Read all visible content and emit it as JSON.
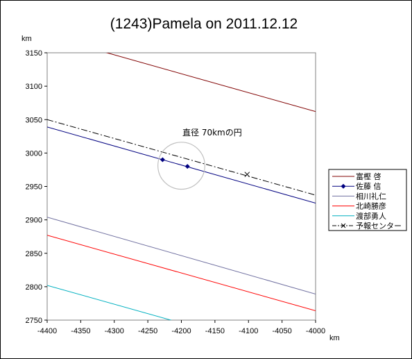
{
  "chart_data": {
    "type": "line",
    "title": "(1243)Pamela on 2011.12.12",
    "xlabel": "km",
    "ylabel": "km",
    "xlim": [
      -4400,
      -4000
    ],
    "ylim": [
      2750,
      3150
    ],
    "x_ticks": [
      "-4400",
      "-4350",
      "-4300",
      "-4250",
      "-4200",
      "-4150",
      "-4100",
      "-4050",
      "-4000"
    ],
    "y_ticks": [
      "3150",
      "3100",
      "3050",
      "3000",
      "2950",
      "2900",
      "2850",
      "2800",
      "2750"
    ],
    "grid": false,
    "legend_position": "right",
    "annotation": {
      "text": "直径 70kmの円",
      "circle_center": [
        -4200,
        2981
      ],
      "circle_diameter_km": 70,
      "color": "#c0c0c0"
    },
    "series": [
      {
        "name": "富樫 啓",
        "color": "#800000",
        "style": "solid",
        "marker": "none",
        "points": [
          [
            -4325,
            3154
          ],
          [
            -4000,
            3062
          ]
        ]
      },
      {
        "name": "佐藤 信",
        "color": "#000080",
        "style": "solid",
        "marker": "diamond",
        "points": [
          [
            -4400,
            3039
          ],
          [
            -4000,
            2925
          ]
        ],
        "markers": [
          [
            -4228,
            2990
          ],
          [
            -4191,
            2980
          ]
        ]
      },
      {
        "name": "相川礼仁",
        "color": "#7070a0",
        "style": "solid",
        "marker": "none",
        "points": [
          [
            -4400,
            2904
          ],
          [
            -4000,
            2789
          ]
        ]
      },
      {
        "name": "北崎勝彦",
        "color": "#ff0000",
        "style": "solid",
        "marker": "none",
        "points": [
          [
            -4400,
            2877
          ],
          [
            -4000,
            2764
          ]
        ]
      },
      {
        "name": "渡部勇人",
        "color": "#00b0c0",
        "style": "solid",
        "marker": "none",
        "points": [
          [
            -4400,
            2802
          ],
          [
            -4205,
            2747
          ]
        ]
      },
      {
        "name": "予報センター",
        "color": "#000000",
        "style": "dashdot",
        "marker": "x",
        "points": [
          [
            -4400,
            3050
          ],
          [
            -4000,
            2937
          ]
        ],
        "markers": [
          [
            -4102,
            2968
          ]
        ]
      }
    ]
  }
}
